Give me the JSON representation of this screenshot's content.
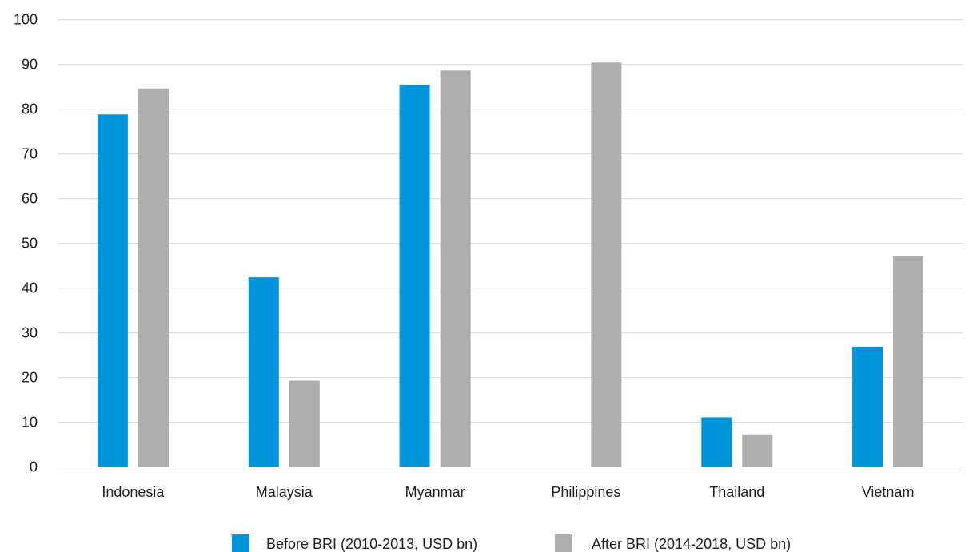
{
  "chart_data": {
    "type": "bar",
    "title": "",
    "xlabel": "",
    "ylabel": "",
    "categories": [
      "Indonesia",
      "Malaysia",
      "Myanmar",
      "Philippines",
      "Thailand",
      "Vietnam"
    ],
    "ylim": [
      0,
      100
    ],
    "yticks": [
      0,
      10,
      20,
      30,
      40,
      50,
      60,
      70,
      80,
      90,
      100
    ],
    "grid": true,
    "legend_position": "bottom",
    "series": [
      {
        "name": "Before BRI (2010-2013, USD bn)",
        "color": "#0095DA",
        "values": [
          78.7,
          42.3,
          85.3,
          null,
          11.0,
          26.8
        ]
      },
      {
        "name": "After BRI (2014-2018, USD bn)",
        "color": "#AEADAD",
        "values": [
          84.5,
          19.2,
          88.5,
          90.3,
          7.2,
          47.0
        ]
      }
    ]
  }
}
